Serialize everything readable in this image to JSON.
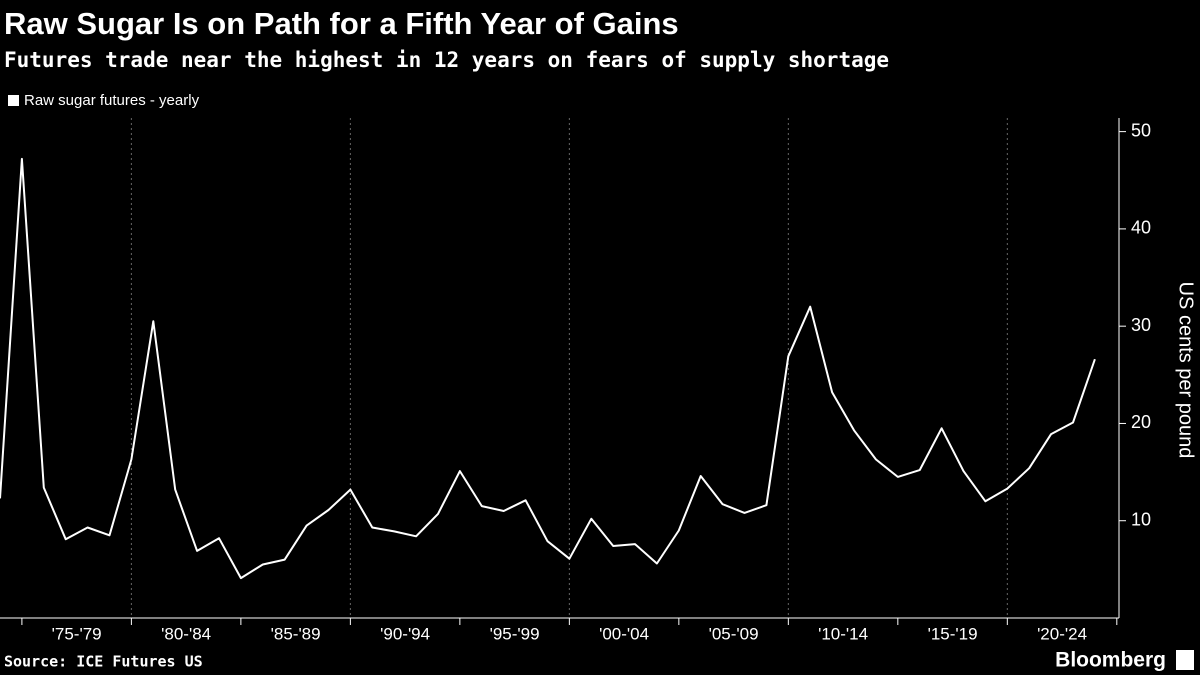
{
  "chart_data": {
    "type": "line",
    "title": "Raw Sugar Is on Path for a Fifth Year of Gains",
    "subtitle": "Futures trade near the highest in 12 years on fears of supply shortage",
    "y_axis_label": "US cents per pound",
    "source": "Source: ICE Futures US",
    "brand": "Bloomberg",
    "x": [
      1974,
      1975,
      1976,
      1977,
      1978,
      1979,
      1980,
      1981,
      1982,
      1983,
      1984,
      1985,
      1986,
      1987,
      1988,
      1989,
      1990,
      1991,
      1992,
      1993,
      1994,
      1995,
      1996,
      1997,
      1998,
      1999,
      2000,
      2001,
      2002,
      2003,
      2004,
      2005,
      2006,
      2007,
      2008,
      2009,
      2010,
      2011,
      2012,
      2013,
      2014,
      2015,
      2016,
      2017,
      2018,
      2019,
      2020,
      2021,
      2022,
      2023,
      2024
    ],
    "series": [
      {
        "name": "Raw sugar futures - yearly",
        "color": "#ffffff",
        "values": [
          12.3,
          47.2,
          13.4,
          8.1,
          9.3,
          8.5,
          16.3,
          30.5,
          13.2,
          6.9,
          8.2,
          4.1,
          5.5,
          6.0,
          9.5,
          11.1,
          13.2,
          9.3,
          8.9,
          8.4,
          10.7,
          15.1,
          11.5,
          11.0,
          12.1,
          7.9,
          6.1,
          10.2,
          7.4,
          7.6,
          5.6,
          9.0,
          14.6,
          11.7,
          10.8,
          11.6,
          26.9,
          32.0,
          23.2,
          19.3,
          16.3,
          14.5,
          15.2,
          19.5,
          15.1,
          12.0,
          13.3,
          15.4,
          18.9,
          20.1,
          26.6
        ]
      }
    ],
    "xlim": [
      1974,
      2025.1
    ],
    "xticks": [
      {
        "value": 1977.5,
        "label": "'75-'79"
      },
      {
        "value": 1982.5,
        "label": "'80-'84"
      },
      {
        "value": 1987.5,
        "label": "'85-'89"
      },
      {
        "value": 1992.5,
        "label": "'90-'94"
      },
      {
        "value": 1997.5,
        "label": "'95-'99"
      },
      {
        "value": 2002.5,
        "label": "'00-'04"
      },
      {
        "value": 2007.5,
        "label": "'05-'09"
      },
      {
        "value": 2012.5,
        "label": "'10-'14"
      },
      {
        "value": 2017.5,
        "label": "'15-'19"
      },
      {
        "value": 2022.5,
        "label": "'20-'24"
      }
    ],
    "ylim": [
      0,
      51.4
    ],
    "yticks": [
      10,
      20,
      30,
      40,
      50
    ],
    "grid": true
  }
}
